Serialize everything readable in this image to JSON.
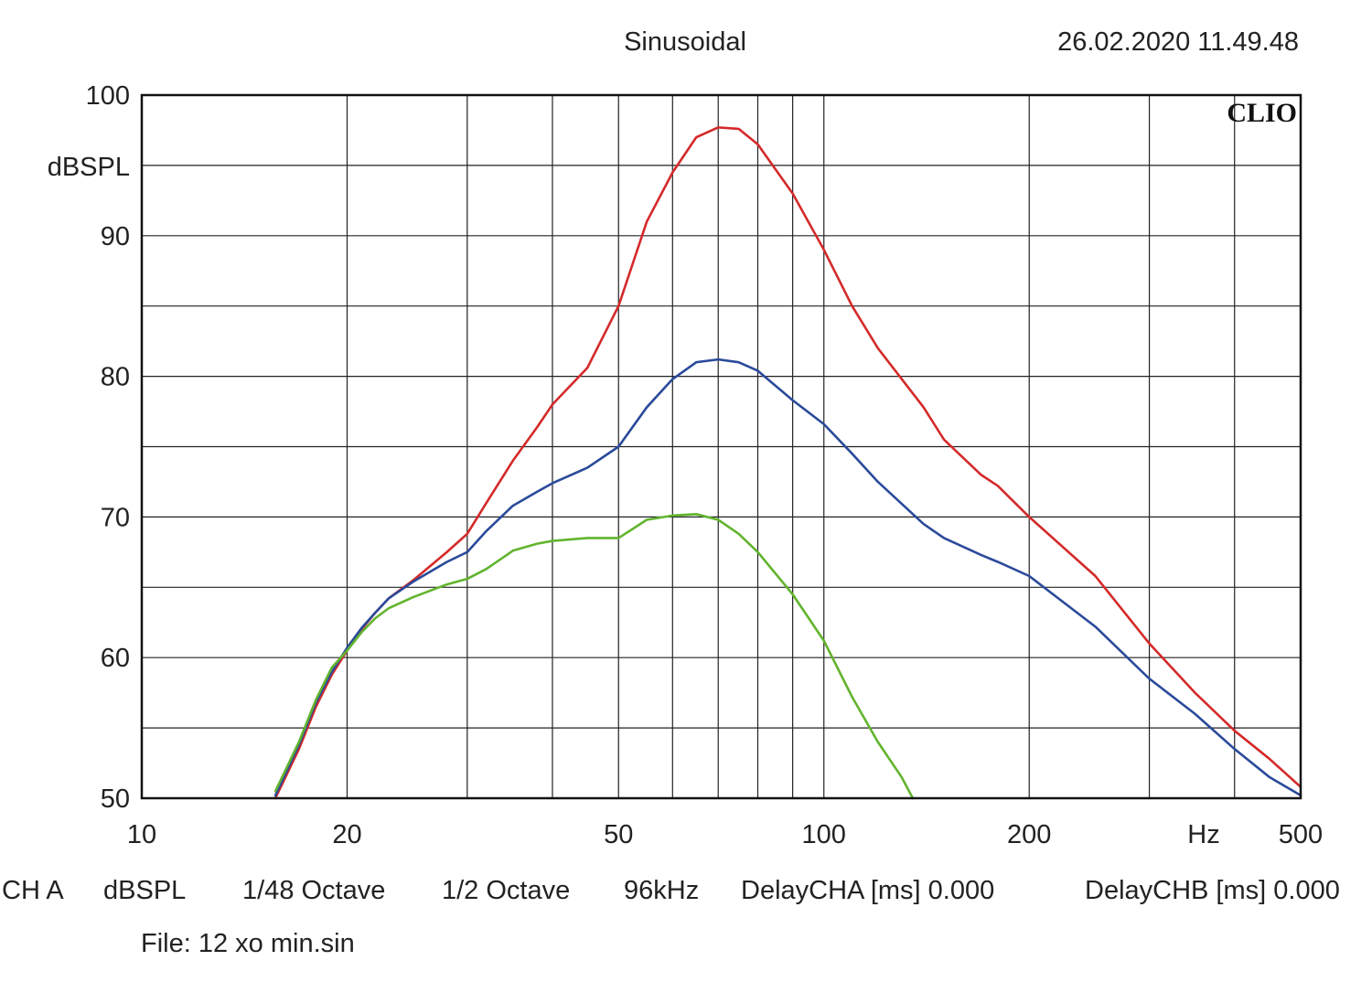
{
  "header": {
    "title": "Sinusoidal",
    "timestamp": "26.02.2020 11.49.48"
  },
  "logo": "CLIO",
  "chart_data": {
    "type": "line",
    "xscale": "log",
    "xlim": [
      10,
      500
    ],
    "ylim": [
      50,
      100
    ],
    "grid": true,
    "ylabel": "dBSPL",
    "xlabel": "Hz",
    "y_ticks": [
      "50",
      "60",
      "70",
      "80",
      "90",
      "100"
    ],
    "x_ticks": [
      {
        "value": 10,
        "label": "10"
      },
      {
        "value": 20,
        "label": "20"
      },
      {
        "value": 50,
        "label": "50"
      },
      {
        "value": 100,
        "label": "100"
      },
      {
        "value": 200,
        "label": "200"
      },
      {
        "value": 500,
        "label": "500"
      }
    ],
    "series": [
      {
        "color": "#d42a2a",
        "x": [
          15.7,
          17,
          18,
          19,
          20,
          21,
          22,
          23,
          25,
          28,
          30,
          32,
          35,
          38,
          40,
          45,
          50,
          55,
          60,
          65,
          70,
          75,
          80,
          90,
          100,
          110,
          120,
          140,
          150,
          170,
          180,
          200,
          250,
          300,
          350,
          400,
          450,
          500
        ],
        "y": [
          50,
          53.5,
          56.5,
          58.8,
          60.5,
          62,
          63.2,
          64.2,
          65.5,
          67.5,
          68.8,
          71,
          74,
          76.4,
          78,
          80.6,
          85,
          91,
          94.5,
          97,
          97.7,
          97.6,
          96.5,
          93,
          89,
          85,
          82,
          77.8,
          75.5,
          73,
          72.2,
          70,
          65.8,
          61,
          57.5,
          54.8,
          52.8,
          50.8
        ]
      },
      {
        "color": "#2a4a9a",
        "x": [
          15.7,
          17,
          18,
          19,
          20,
          21,
          22,
          23,
          25,
          28,
          30,
          32,
          35,
          38,
          40,
          45,
          50,
          55,
          60,
          65,
          70,
          75,
          80,
          90,
          100,
          110,
          120,
          140,
          150,
          170,
          180,
          200,
          250,
          300,
          350,
          400,
          450,
          500
        ],
        "y": [
          50.2,
          53.8,
          56.8,
          59,
          60.7,
          62.1,
          63.2,
          64.2,
          65.4,
          66.8,
          67.5,
          69,
          70.8,
          71.8,
          72.4,
          73.5,
          75,
          77.8,
          79.8,
          81,
          81.2,
          81,
          80.4,
          78.3,
          76.6,
          74.5,
          72.5,
          69.5,
          68.5,
          67.3,
          66.8,
          65.8,
          62.2,
          58.5,
          56,
          53.5,
          51.5,
          50.2
        ]
      },
      {
        "color": "#62b42e",
        "x": [
          15.7,
          17,
          18,
          19,
          20,
          21,
          22,
          23,
          25,
          28,
          30,
          32,
          35,
          38,
          40,
          45,
          50,
          55,
          60,
          65,
          70,
          75,
          80,
          90,
          100,
          110,
          120,
          130,
          135
        ],
        "y": [
          50.5,
          54,
          57,
          59.3,
          60.5,
          61.8,
          62.8,
          63.5,
          64.3,
          65.2,
          65.6,
          66.3,
          67.6,
          68.1,
          68.3,
          68.5,
          68.5,
          69.8,
          70.1,
          70.2,
          69.8,
          68.8,
          67.5,
          64.5,
          61.2,
          57.2,
          54,
          51.5,
          50
        ]
      }
    ]
  },
  "footer": {
    "channel": "CH A",
    "unit": "dBSPL",
    "smoothing_resolution": "1/48 Octave",
    "smoothing": "1/2 Octave",
    "sample_rate": "96kHz",
    "delay_a": "DelayCHA [ms] 0.000",
    "delay_b": "DelayCHB [ms] 0.000",
    "file": "File: 12 xo min.sin"
  }
}
